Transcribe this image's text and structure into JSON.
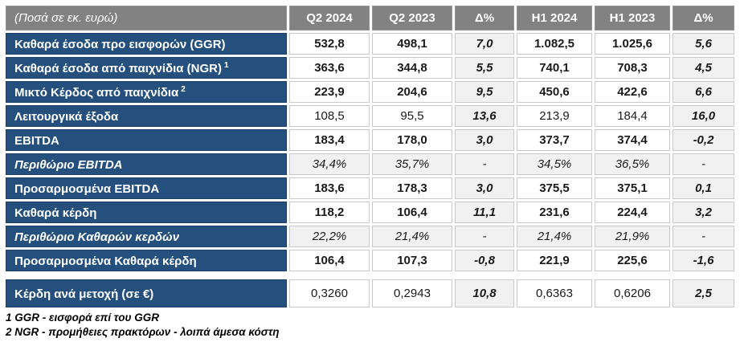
{
  "table": {
    "header": {
      "corner": "(Ποσά σε εκ. ευρώ)",
      "columns": [
        "Q2 2024",
        "Q2 2023",
        "Δ%",
        "H1 2024",
        "H1 2023",
        "Δ%"
      ]
    },
    "rows": [
      {
        "label": "Καθαρά έσοδα προ εισφορών (GGR)",
        "sup": "",
        "style": "bold",
        "values": [
          "532,8",
          "498,1",
          "7,0",
          "1.082,5",
          "1.025,6",
          "5,6"
        ]
      },
      {
        "label": "Καθαρά έσοδα από παιχνίδια (NGR)",
        "sup": "1",
        "style": "bold",
        "values": [
          "363,6",
          "344,8",
          "5,5",
          "740,1",
          "708,3",
          "4,5"
        ]
      },
      {
        "label": "Μικτό Κέρδος από παιχνίδια",
        "sup": "2",
        "style": "bold",
        "values": [
          "223,9",
          "204,6",
          "9,5",
          "450,6",
          "422,6",
          "6,6"
        ]
      },
      {
        "label": "Λειτουργικά έξοδα",
        "sup": "",
        "style": "regular",
        "values": [
          "108,5",
          "95,5",
          "13,6",
          "213,9",
          "184,4",
          "16,0"
        ]
      },
      {
        "label": "EBITDA",
        "sup": "",
        "style": "bold",
        "values": [
          "183,4",
          "178,0",
          "3,0",
          "373,7",
          "374,4",
          "-0,2"
        ]
      },
      {
        "label": "Περιθώριο EBITDA",
        "sup": "",
        "style": "percent",
        "values": [
          "34,4%",
          "35,7%",
          "-",
          "34,5%",
          "36,5%",
          "-"
        ]
      },
      {
        "label": "Προσαρμοσμένα EBITDA",
        "sup": "",
        "style": "bold",
        "values": [
          "183,6",
          "178,3",
          "3,0",
          "375,5",
          "375,1",
          "0,1"
        ]
      },
      {
        "label": "Καθαρά κέρδη",
        "sup": "",
        "style": "bold",
        "values": [
          "118,2",
          "106,4",
          "11,1",
          "231,6",
          "224,4",
          "3,2"
        ]
      },
      {
        "label": "Περιθώριο Καθαρών κερδών",
        "sup": "",
        "style": "percent",
        "values": [
          "22,2%",
          "21,4%",
          "-",
          "21,4%",
          "21,9%",
          "-"
        ]
      },
      {
        "label": "Προσαρμοσμένα Καθαρά κέρδη",
        "sup": "",
        "style": "bold",
        "values": [
          "106,4",
          "107,3",
          "-0,8",
          "221,9",
          "225,6",
          "-1,6"
        ]
      },
      {
        "label": "Κέρδη ανά μετοχή (σε €)",
        "sup": "",
        "style": "regular",
        "values": [
          "0,3260",
          "0,2943",
          "10,8",
          "0,6363",
          "0,6206",
          "2,5"
        ]
      }
    ],
    "footnotes": [
      "1 GGR - εισφορά επί του GGR",
      "2 NGR - προμήθειες πρακτόρων - λοιπά άμεσα κόστη"
    ]
  },
  "colors": {
    "header_bg": "#828282",
    "header_text": "#FFFFFF",
    "label_bg": "#25507D",
    "cell_bg": "#FFFFFF",
    "delta_bg": "#F1F1F1",
    "value_text": "#1A1A1A"
  }
}
